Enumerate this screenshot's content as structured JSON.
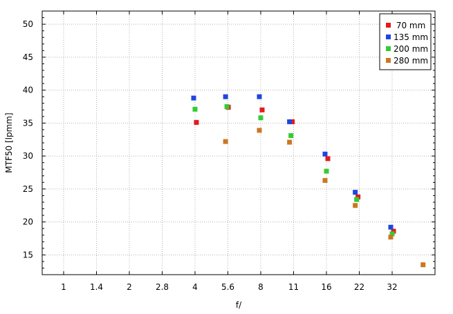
{
  "chart_data": {
    "type": "scatter",
    "title": "",
    "xlabel": "f/",
    "ylabel": "MTF50 [lpmm]",
    "x_categories": [
      "1",
      "1.4",
      "2",
      "2.8",
      "4",
      "5.6",
      "8",
      "11",
      "16",
      "22",
      "32"
    ],
    "ylim": [
      12,
      52
    ],
    "y_ticks": [
      15,
      20,
      25,
      30,
      35,
      40,
      45,
      50
    ],
    "grid": true,
    "legend_position": "top-right",
    "series": [
      {
        "name": " 70 mm",
        "color": "#e41a1c",
        "points": [
          [
            4,
            35.1
          ],
          [
            5.6,
            37.4
          ],
          [
            8,
            37.0
          ],
          [
            11,
            35.2
          ],
          [
            16,
            29.6
          ],
          [
            22,
            23.8
          ],
          [
            32,
            18.6
          ]
        ]
      },
      {
        "name": "135 mm",
        "color": "#1f45e0",
        "points": [
          [
            4,
            38.8
          ],
          [
            5.6,
            39.0
          ],
          [
            8,
            39.0
          ],
          [
            11,
            35.2
          ],
          [
            16,
            30.3
          ],
          [
            22,
            24.5
          ],
          [
            32,
            19.2
          ]
        ]
      },
      {
        "name": "200 mm",
        "color": "#33cc33",
        "points": [
          [
            4,
            37.1
          ],
          [
            5.6,
            37.5
          ],
          [
            8,
            35.8
          ],
          [
            11,
            33.1
          ],
          [
            16,
            27.7
          ],
          [
            22,
            23.4
          ],
          [
            32,
            18.2
          ]
        ]
      },
      {
        "name": "280 mm",
        "color": "#cc7722",
        "points": [
          [
            5.6,
            32.2
          ],
          [
            8,
            33.9
          ],
          [
            11,
            32.1
          ],
          [
            16,
            26.3
          ],
          [
            22,
            22.5
          ],
          [
            32,
            17.7
          ],
          [
            45,
            13.5
          ]
        ]
      }
    ]
  }
}
